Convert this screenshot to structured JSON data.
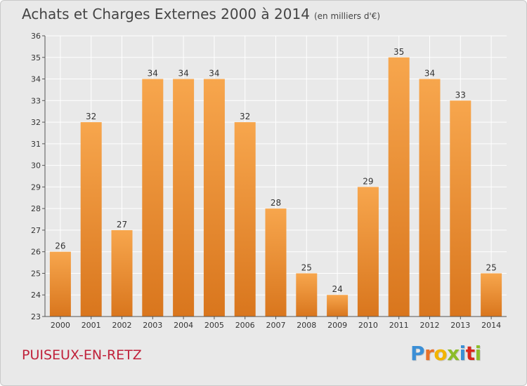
{
  "colors": {
    "bar_top": "#f7a64d",
    "bar_bottom": "#d9761d",
    "grid": "#ffffff",
    "axis": "#555555",
    "commune": "#c0213a"
  },
  "logo": {
    "letters": [
      {
        "char": "P",
        "color": "#3b8fd6"
      },
      {
        "char": "r",
        "color": "#e8712a"
      },
      {
        "char": "o",
        "color": "#f2b400"
      },
      {
        "char": "x",
        "color": "#8cbd2a"
      },
      {
        "char": "i",
        "color": "#3b8fd6"
      },
      {
        "char": "t",
        "color": "#d9261c"
      },
      {
        "char": "i",
        "color": "#8cbd2a"
      }
    ]
  },
  "commune": "PUISEUX-EN-RETZ",
  "chart_data": {
    "type": "bar",
    "title": "Achats et Charges Externes 2000 à 2014",
    "subtitle": "(en milliers d'€)",
    "xlabel": "",
    "ylabel": "",
    "ylim": [
      23,
      36
    ],
    "yticks": [
      23,
      24,
      25,
      26,
      27,
      28,
      29,
      30,
      31,
      32,
      33,
      34,
      35,
      36
    ],
    "grid": true,
    "categories": [
      "2000",
      "2001",
      "2002",
      "2003",
      "2004",
      "2005",
      "2006",
      "2007",
      "2008",
      "2009",
      "2010",
      "2011",
      "2012",
      "2013",
      "2014"
    ],
    "values": [
      26,
      32,
      27,
      34,
      34,
      34,
      32,
      28,
      25,
      24,
      29,
      35,
      34,
      33,
      25
    ]
  }
}
